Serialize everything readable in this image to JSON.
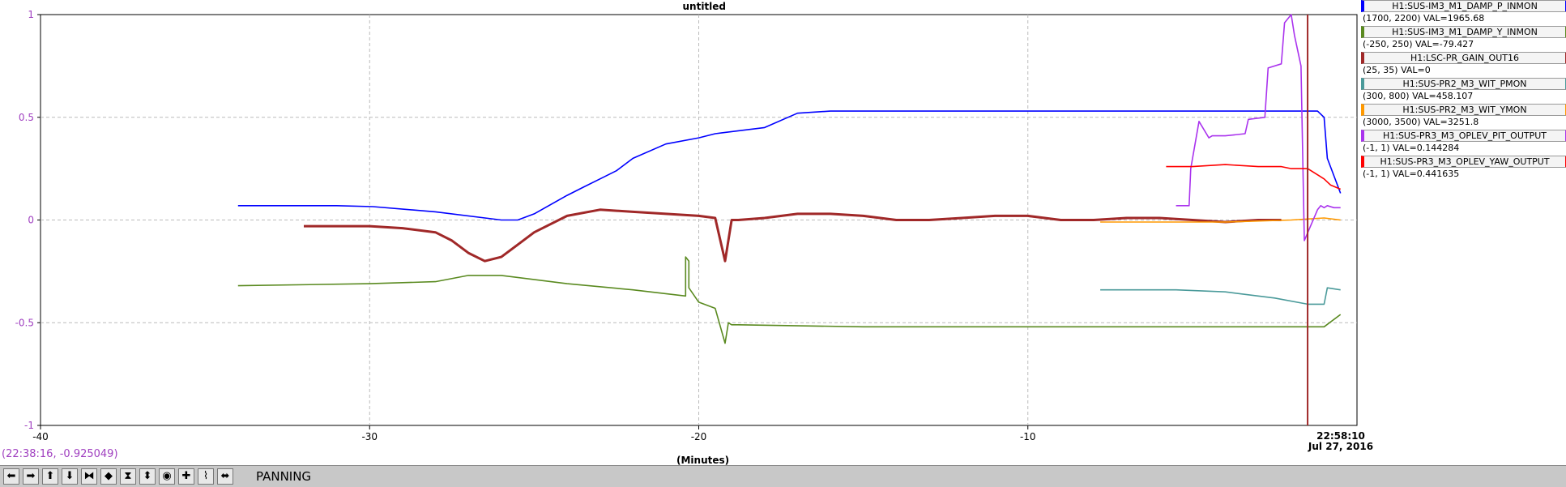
{
  "chart_data": {
    "type": "line",
    "title": "untitled",
    "xlabel": "(Minutes)",
    "xlim": [
      -40,
      0
    ],
    "ylim": [
      -1,
      1
    ],
    "x_ticks": [
      -40,
      -30,
      -20,
      -10
    ],
    "x_tick_labels": [
      "-40",
      "-30",
      "-20",
      "-10"
    ],
    "y_ticks": [
      -1,
      -0.5,
      0,
      0.5,
      1
    ],
    "y_tick_labels": [
      "-1",
      "-0.5",
      "0",
      "0.5",
      "1"
    ],
    "end_time_label": "22:58:10",
    "end_date_label": "Jul 27, 2016",
    "grid": true,
    "legend_position": "right",
    "series": [
      {
        "name": "H1:SUS-IM3_M1_DAMP_P_INMON",
        "range_label": "(1700, 2200) VAL=1965.68",
        "color": "#0000ff",
        "x": [
          -34,
          -31,
          -29.9,
          -28,
          -26,
          -25.5,
          -25,
          -24,
          -23.5,
          -23,
          -22.5,
          -22,
          -21,
          -20,
          -19.5,
          -18,
          -17,
          -16,
          -10,
          -2,
          -1.2,
          -1,
          -0.9,
          -0.5
        ],
        "y": [
          0.07,
          0.07,
          0.065,
          0.04,
          0.0,
          0.0,
          0.03,
          0.12,
          0.16,
          0.2,
          0.24,
          0.3,
          0.37,
          0.4,
          0.42,
          0.45,
          0.52,
          0.53,
          0.53,
          0.53,
          0.53,
          0.5,
          0.3,
          0.13
        ]
      },
      {
        "name": "H1:SUS-IM3_M1_DAMP_Y_INMON",
        "range_label": "(-250, 250) VAL=-79.427",
        "color": "#5a8a20",
        "x": [
          -34,
          -30,
          -28,
          -27,
          -26,
          -24,
          -22,
          -20.4,
          -20.4,
          -20.3,
          -20.3,
          -20,
          -19.5,
          -19.2,
          -19.1,
          -19,
          -18.8,
          -15,
          -10,
          -5,
          -1,
          -0.5
        ],
        "y": [
          -0.32,
          -0.31,
          -0.3,
          -0.27,
          -0.27,
          -0.31,
          -0.34,
          -0.37,
          -0.18,
          -0.2,
          -0.33,
          -0.4,
          -0.43,
          -0.6,
          -0.5,
          -0.51,
          -0.51,
          -0.52,
          -0.52,
          -0.52,
          -0.52,
          -0.46
        ]
      },
      {
        "name": "H1:LSC-PR_GAIN_OUT16",
        "range_label": "(25, 35) VAL=0",
        "color": "#a02828",
        "x": [
          -32,
          -30,
          -29,
          -28,
          -27.5,
          -27,
          -26.5,
          -26,
          -25.5,
          -25,
          -24,
          -23,
          -22,
          -21,
          -20,
          -19.5,
          -19.2,
          -19,
          -18.8,
          -18,
          -17,
          -16,
          -15,
          -14,
          -13,
          -12,
          -11,
          -10,
          -9,
          -8,
          -7,
          -6,
          -5,
          -4,
          -3,
          -2.5,
          -2.3
        ],
        "y": [
          -0.03,
          -0.03,
          -0.04,
          -0.06,
          -0.1,
          -0.16,
          -0.2,
          -0.18,
          -0.12,
          -0.06,
          0.02,
          0.05,
          0.04,
          0.03,
          0.02,
          0.01,
          -0.2,
          0.0,
          0.0,
          0.01,
          0.03,
          0.03,
          0.02,
          0.0,
          0.0,
          0.01,
          0.02,
          0.02,
          0.0,
          0.0,
          0.01,
          0.01,
          0.0,
          -0.01,
          0.0,
          0.0,
          0.0
        ]
      },
      {
        "name": "H1:SUS-PR2_M3_WIT_PMON",
        "range_label": "(300, 800) VAL=458.107",
        "color": "#4a9a9a",
        "x": [
          -7.8,
          -5.5,
          -4,
          -3,
          -2.5,
          -1.5,
          -1,
          -0.9,
          -0.5
        ],
        "y": [
          -0.34,
          -0.34,
          -0.35,
          -0.37,
          -0.38,
          -0.41,
          -0.41,
          -0.33,
          -0.34
        ]
      },
      {
        "name": "H1:SUS-PR2_M3_WIT_YMON",
        "range_label": "(3000, 3500) VAL=3251.8",
        "color": "#ff9900",
        "x": [
          -7.8,
          -4,
          -2,
          -1,
          -0.5
        ],
        "y": [
          -0.01,
          -0.01,
          0.0,
          0.01,
          0.0
        ]
      },
      {
        "name": "H1:SUS-PR3_M3_OPLEV_PIT_OUTPUT",
        "range_label": "(-1, 1) VAL=0.144284",
        "color": "#aa33ee",
        "x": [
          -5.5,
          -5.1,
          -5.05,
          -4.8,
          -4.5,
          -4.4,
          -4.0,
          -3.4,
          -3.3,
          -2.8,
          -2.7,
          -2.3,
          -2.2,
          -2.0,
          -1.9,
          -1.7,
          -1.6,
          -1.2,
          -1.1,
          -1.0,
          -0.9,
          -0.7,
          -0.5
        ],
        "y": [
          0.07,
          0.07,
          0.25,
          0.48,
          0.4,
          0.41,
          0.41,
          0.42,
          0.49,
          0.5,
          0.74,
          0.76,
          0.96,
          1.0,
          0.9,
          0.75,
          -0.1,
          0.05,
          0.07,
          0.06,
          0.07,
          0.06,
          0.06
        ]
      },
      {
        "name": "H1:SUS-PR3_M3_OPLEV_YAW_OUTPUT",
        "range_label": "(-1, 1) VAL=0.441635",
        "color": "#ff0000",
        "x": [
          -5.8,
          -5,
          -4,
          -3,
          -2.5,
          -2.3,
          -2,
          -1.5,
          -1.2,
          -1,
          -0.8,
          -0.5
        ],
        "y": [
          0.26,
          0.26,
          0.27,
          0.26,
          0.26,
          0.26,
          0.25,
          0.25,
          0.22,
          0.2,
          0.17,
          0.15
        ]
      }
    ],
    "marker_x": -1.5,
    "marker_color": "#a02828"
  },
  "cursor_readout": "(22:38:16, -0.925049)",
  "toolbar": {
    "mode_label": "PANNING",
    "buttons": [
      {
        "name": "pan-left-button",
        "glyph": "⬅"
      },
      {
        "name": "pan-right-button",
        "glyph": "➡"
      },
      {
        "name": "pan-up-button",
        "glyph": "⬆"
      },
      {
        "name": "pan-down-button",
        "glyph": "⬇"
      },
      {
        "name": "zoom-x-in-button",
        "glyph": "⧓"
      },
      {
        "name": "zoom-x-out-button",
        "glyph": "◆"
      },
      {
        "name": "zoom-y-in-button",
        "glyph": "⧗"
      },
      {
        "name": "zoom-y-out-button",
        "glyph": "⬍"
      },
      {
        "name": "record-button",
        "glyph": "◉"
      },
      {
        "name": "crosshair-button",
        "glyph": "✚"
      },
      {
        "name": "autoscale-button",
        "glyph": "⌇"
      },
      {
        "name": "pan-mode-button",
        "glyph": "⬌"
      }
    ]
  }
}
